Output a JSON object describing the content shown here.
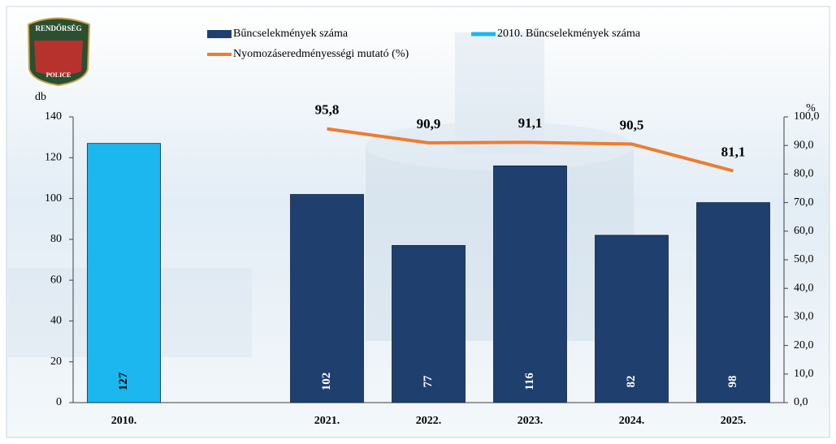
{
  "logo": {
    "top": "RENDŐRSÉG",
    "bottom": "POLICE"
  },
  "chart_data": {
    "type": "bar",
    "categories": [
      "2010.",
      null,
      "2021.",
      "2022.",
      "2023.",
      "2024.",
      "2025."
    ],
    "series": [
      {
        "name": "Bűncselekmények száma",
        "type": "bar",
        "color": "#1f3f6e",
        "values": [
          null,
          null,
          102,
          77,
          116,
          82,
          98
        ]
      },
      {
        "name": "2010. Bűncselekmények száma",
        "type": "bar",
        "color": "#1cb7ee",
        "values": [
          127,
          null,
          null,
          null,
          null,
          null,
          null
        ]
      },
      {
        "name": "Nyomozáseredményességi mutató (%)",
        "type": "line",
        "axis": "y2",
        "color": "#ed7d31",
        "values": [
          null,
          null,
          95.8,
          90.9,
          91.1,
          90.5,
          81.1
        ],
        "value_labels": [
          null,
          null,
          "95,8",
          "90,9",
          "91,1",
          "90,5",
          "81,1"
        ]
      }
    ],
    "ylabel": "db",
    "y2label": "%",
    "ylim": [
      0,
      140
    ],
    "yticks": [
      0,
      20,
      40,
      60,
      80,
      100,
      120,
      140
    ],
    "y2lim": [
      0,
      100
    ],
    "y2ticks": [
      {
        "value": 0,
        "label": "0,0"
      },
      {
        "value": 10,
        "label": "10,0"
      },
      {
        "value": 20,
        "label": "20,0"
      },
      {
        "value": 30,
        "label": "30,0"
      },
      {
        "value": 40,
        "label": "40,0"
      },
      {
        "value": 50,
        "label": "50,0"
      },
      {
        "value": 60,
        "label": "60,0"
      },
      {
        "value": 70,
        "label": "70,0"
      },
      {
        "value": 80,
        "label": "80,0"
      },
      {
        "value": 90,
        "label": "90,0"
      },
      {
        "value": 100,
        "label": "100,0"
      }
    ],
    "grid": false
  }
}
